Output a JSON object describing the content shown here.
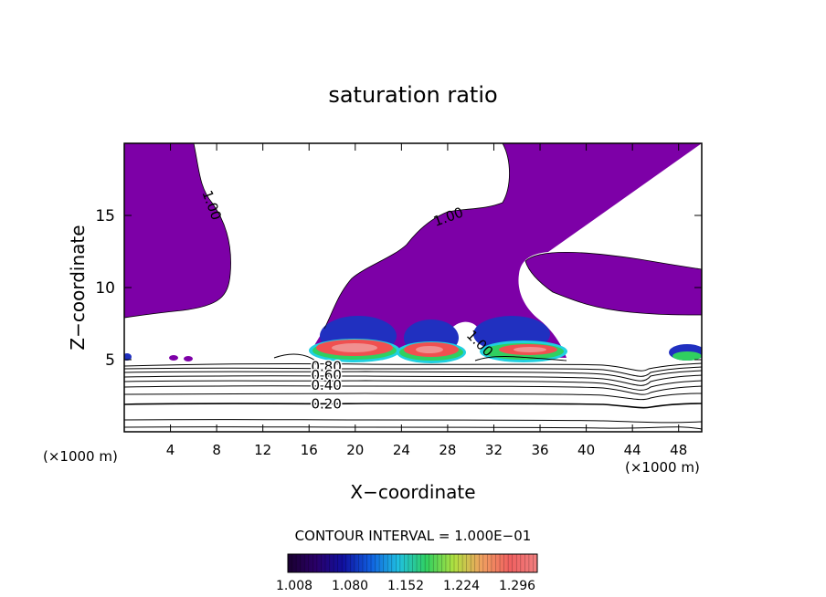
{
  "chart_data": {
    "type": "contour",
    "title": "saturation ratio",
    "xlabel": "X−coordinate",
    "ylabel": "Z−coordinate",
    "x_unit_left": "(×1000 m)",
    "x_unit_right": "(×1000 m)",
    "xlim": [
      0,
      50
    ],
    "ylim": [
      0,
      20
    ],
    "x_ticks": [
      {
        "value": 4,
        "label": "4"
      },
      {
        "value": 8,
        "label": "8"
      },
      {
        "value": 12,
        "label": "12"
      },
      {
        "value": 16,
        "label": "16"
      },
      {
        "value": 20,
        "label": "20"
      },
      {
        "value": 24,
        "label": "24"
      },
      {
        "value": 28,
        "label": "28"
      },
      {
        "value": 32,
        "label": "32"
      },
      {
        "value": 36,
        "label": "36"
      },
      {
        "value": 40,
        "label": "40"
      },
      {
        "value": 44,
        "label": "44"
      },
      {
        "value": 48,
        "label": "48"
      }
    ],
    "y_ticks": [
      {
        "value": 5,
        "label": "5"
      },
      {
        "value": 10,
        "label": "10"
      },
      {
        "value": 15,
        "label": "15"
      }
    ],
    "contour_labels": [
      {
        "text": "1.00",
        "x": 7.2,
        "y": 15.6,
        "rotate": 70
      },
      {
        "text": "1.00",
        "x": 28.2,
        "y": 14.6,
        "rotate": -20
      },
      {
        "text": "1.00",
        "x": 30.5,
        "y": 5.9,
        "rotate": 45
      },
      {
        "text": "0.80",
        "x": 17.5,
        "y": 4.2,
        "rotate": 0
      },
      {
        "text": "0.60",
        "x": 17.5,
        "y": 3.6,
        "rotate": 0
      },
      {
        "text": "0.40",
        "x": 17.5,
        "y": 2.9,
        "rotate": 0
      },
      {
        "text": "0.20",
        "x": 17.5,
        "y": 1.6,
        "rotate": 0
      }
    ],
    "contour_interval_text": "CONTOUR INTERVAL = 1.000E−01",
    "colorbar": {
      "min": 1.008,
      "max": 1.33,
      "tick_labels": [
        "1.008",
        "1.080",
        "1.152",
        "1.224",
        "1.296"
      ],
      "colors": [
        "#1a0030",
        "#2a0068",
        "#1010a0",
        "#1060e0",
        "#20c0e0",
        "#30d060",
        "#b0e040",
        "#f0a060",
        "#f06060",
        "#f08080"
      ]
    },
    "fill_colors": {
      "supersaturated": "#7d00a7",
      "core_blue": "#2030c0",
      "core_cyan": "#20d0e0",
      "core_green": "#30d060",
      "core_red": "#f05050",
      "core_pink": "#f09090"
    }
  }
}
